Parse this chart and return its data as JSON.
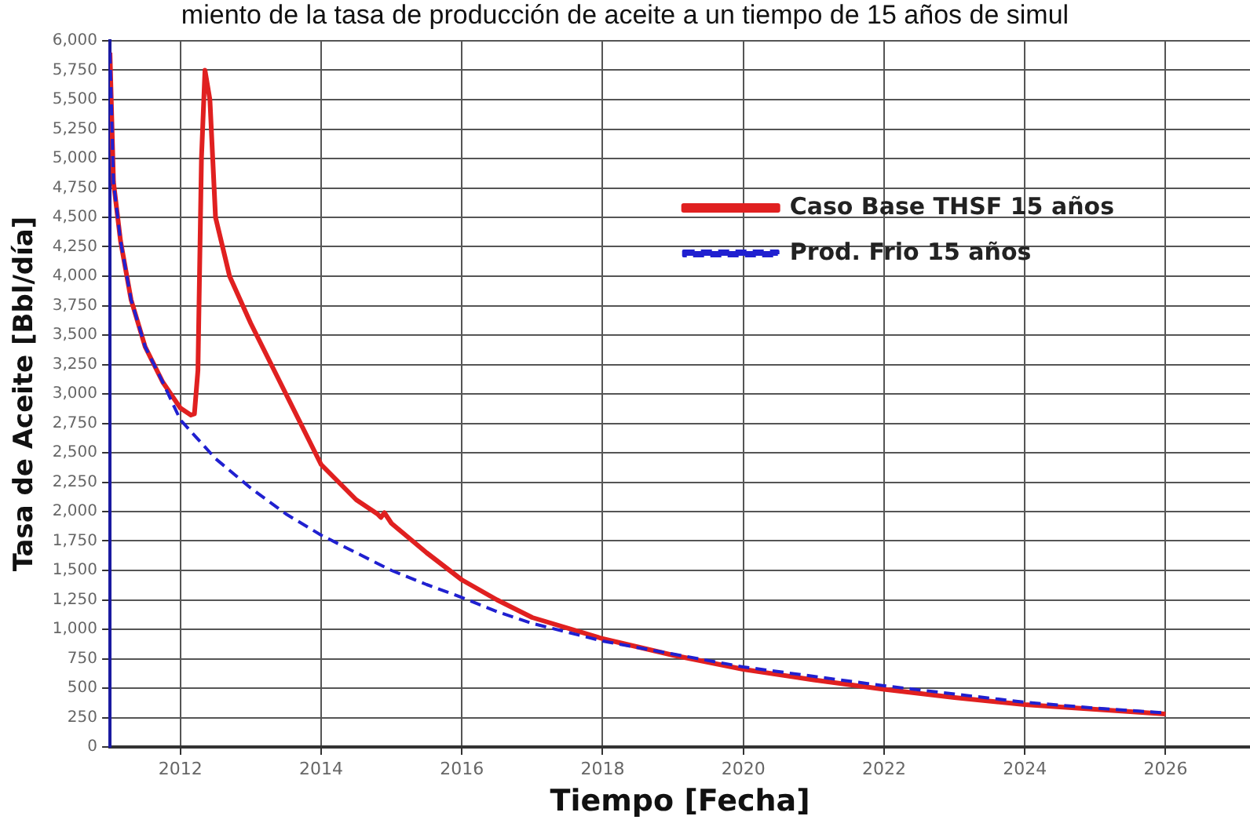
{
  "chart_data": {
    "type": "line",
    "title": "miento de la tasa de producción de aceite a un tiempo de 15 años de simul",
    "xlabel": "Tiempo [Fecha]",
    "ylabel": "Tasa de Aceite [Bbl/día]",
    "xlim": [
      2011,
      2027.2
    ],
    "xticks": [
      2012,
      2014,
      2016,
      2018,
      2020,
      2022,
      2024,
      2026
    ],
    "ylim": [
      0,
      6000
    ],
    "yticks": [
      {
        "value": 0,
        "label": "0"
      },
      {
        "value": 250,
        "label": "250"
      },
      {
        "value": 500,
        "label": "500"
      },
      {
        "value": 750,
        "label": "750"
      },
      {
        "value": 1000,
        "label": "1,000"
      },
      {
        "value": 1250,
        "label": "1,250"
      },
      {
        "value": 1500,
        "label": "1,500"
      },
      {
        "value": 1750,
        "label": "1,750"
      },
      {
        "value": 2000,
        "label": "2,000"
      },
      {
        "value": 2250,
        "label": "2,250"
      },
      {
        "value": 2500,
        "label": "2,500"
      },
      {
        "value": 2750,
        "label": "2,750"
      },
      {
        "value": 3000,
        "label": "3,000"
      },
      {
        "value": 3250,
        "label": "3,250"
      },
      {
        "value": 3500,
        "label": "3,500"
      },
      {
        "value": 3750,
        "label": "3,750"
      },
      {
        "value": 4000,
        "label": "4,000"
      },
      {
        "value": 4250,
        "label": "4,250"
      },
      {
        "value": 4500,
        "label": "4,500"
      },
      {
        "value": 4750,
        "label": "4,750"
      },
      {
        "value": 5000,
        "label": "5,000"
      },
      {
        "value": 5250,
        "label": "5,250"
      },
      {
        "value": 5500,
        "label": "5,500"
      },
      {
        "value": 5750,
        "label": "5,750"
      },
      {
        "value": 6000,
        "label": "6,000"
      }
    ],
    "grid": true,
    "legend": "top right",
    "marker": "none",
    "series": [
      {
        "name": "Caso Base THSF 15 años",
        "color": "#e02020",
        "line_style": "solid",
        "x": [
          2011,
          2011.05,
          2011.15,
          2011.3,
          2011.5,
          2011.75,
          2012,
          2012.15,
          2012.2,
          2012.25,
          2012.3,
          2012.35,
          2012.42,
          2012.5,
          2012.7,
          2013,
          2013.5,
          2014,
          2014.5,
          2014.8,
          2014.85,
          2014.9,
          2015,
          2015.5,
          2016,
          2016.5,
          2017,
          2018,
          2019,
          2020,
          2021,
          2022,
          2023,
          2024,
          2025,
          2026
        ],
        "values": [
          5900,
          4800,
          4300,
          3800,
          3400,
          3100,
          2880,
          2820,
          2830,
          3200,
          5000,
          5750,
          5500,
          4500,
          4000,
          3600,
          3000,
          2400,
          2100,
          1980,
          1950,
          1990,
          1900,
          1650,
          1420,
          1250,
          1100,
          920,
          780,
          660,
          570,
          490,
          420,
          360,
          320,
          280
        ]
      },
      {
        "name": "Prod. Frio 15 años",
        "color": "#2020d0",
        "line_style": "dashed",
        "x": [
          2011,
          2011.05,
          2011.15,
          2011.3,
          2011.5,
          2011.75,
          2012,
          2012.5,
          2013,
          2013.5,
          2014,
          2014.5,
          2015,
          2015.5,
          2016,
          2016.5,
          2017,
          2018,
          2019,
          2020,
          2021,
          2022,
          2023,
          2024,
          2025,
          2026
        ],
        "values": [
          5900,
          4800,
          4300,
          3800,
          3400,
          3100,
          2780,
          2450,
          2200,
          1980,
          1800,
          1650,
          1500,
          1380,
          1270,
          1150,
          1050,
          900,
          790,
          680,
          600,
          520,
          450,
          380,
          330,
          290
        ]
      }
    ]
  }
}
